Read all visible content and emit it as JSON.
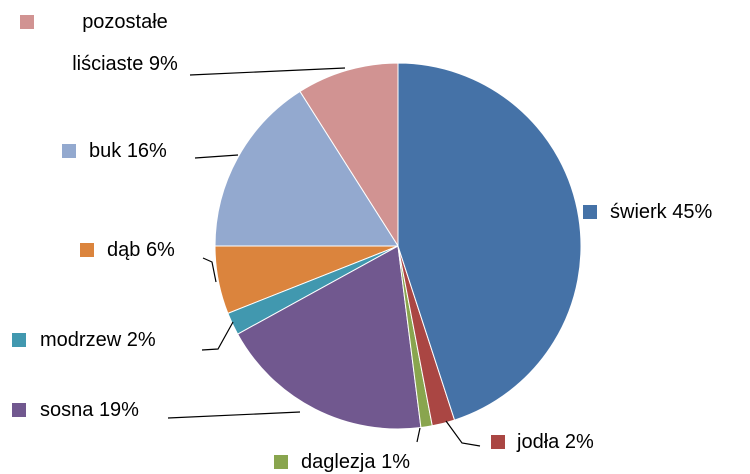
{
  "chart_data": {
    "type": "pie",
    "categories": [
      "świerk",
      "jodła",
      "daglezja",
      "sosna",
      "modrzew",
      "dąb",
      "buk",
      "pozostałe liściaste"
    ],
    "values": [
      45,
      2,
      1,
      19,
      2,
      6,
      16,
      9
    ],
    "value_labels": [
      "45%",
      "2%",
      "1%",
      "19%",
      "2%",
      "6%",
      "16%",
      "9%"
    ],
    "colors": [
      "#4572a7",
      "#aa4643",
      "#89a54e",
      "#71588f",
      "#4198af",
      "#db843d",
      "#93a9cf",
      "#d19392"
    ]
  }
}
